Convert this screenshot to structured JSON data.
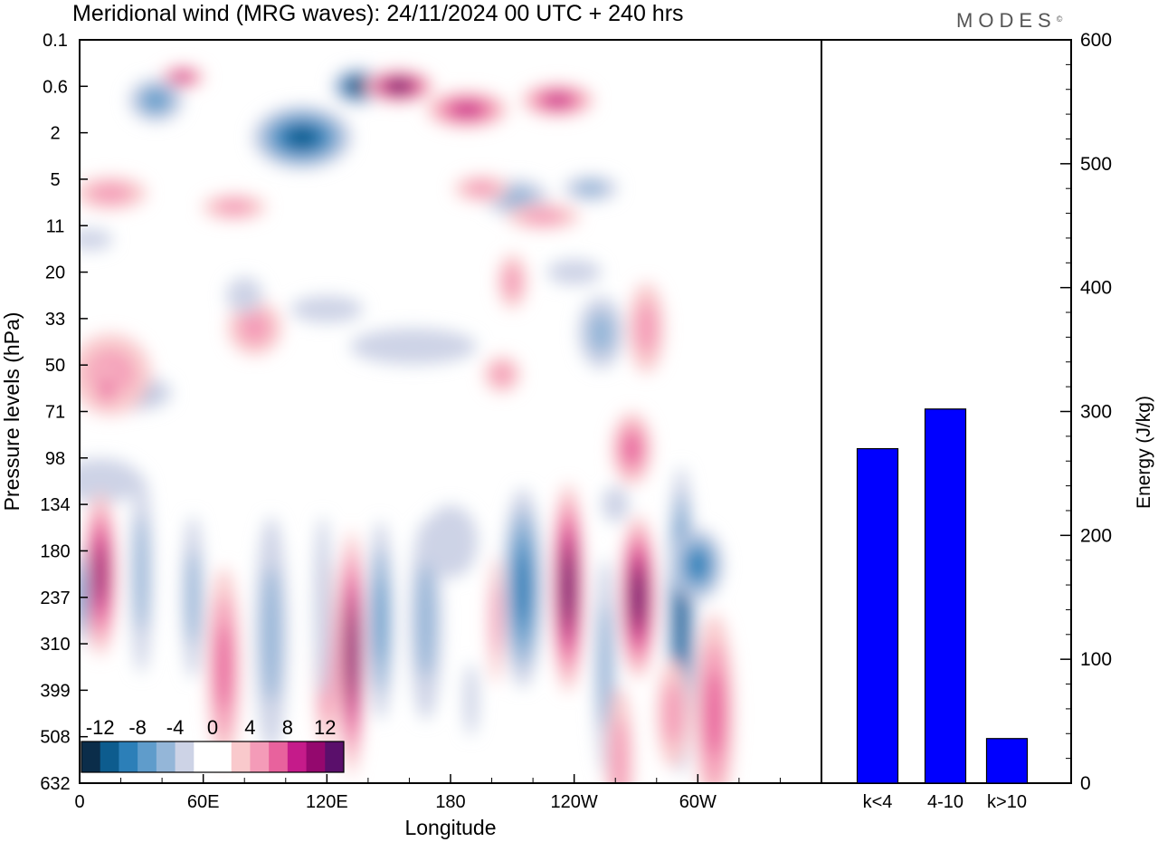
{
  "header": {
    "title": "Meridional wind (MRG waves):  24/11/2024  00 UTC  + 240 hrs",
    "logo_text": "MODES",
    "logo_mark": "©"
  },
  "chart_data": [
    {
      "type": "heatmap",
      "title": "Meridional wind (MRG waves)",
      "xlabel": "Longitude",
      "ylabel": "Pressure levels (hPa)",
      "x_ticks": [
        "0",
        "60E",
        "120E",
        "180",
        "120W",
        "60W"
      ],
      "y_ticks": [
        "0.1",
        "0.6",
        "2",
        "5",
        "11",
        "20",
        "33",
        "50",
        "71",
        "98",
        "134",
        "180",
        "237",
        "310",
        "399",
        "508",
        "632"
      ],
      "colorbar": {
        "labels": [
          "-12",
          "-8",
          "-4",
          "0",
          "4",
          "8",
          "12"
        ],
        "colors": [
          "#0b2d4a",
          "#0d5c8e",
          "#2c7fb8",
          "#5f9ccb",
          "#94b6d8",
          "#cdd3e6",
          "#ffffff",
          "#ffffff",
          "#f9c9cc",
          "#f49bb8",
          "#e8629d",
          "#c51b8a",
          "#94086e",
          "#5a0f6b"
        ]
      },
      "features": [
        {
          "lon": 135,
          "level": 1,
          "value": -14,
          "rx": 28,
          "ry": 20
        },
        {
          "lon": 155,
          "level": 1,
          "value": 14,
          "rx": 38,
          "ry": 18
        },
        {
          "lon": 50,
          "level": 0.8,
          "value": 9,
          "rx": 24,
          "ry": 12
        },
        {
          "lon": 108,
          "level": 2.1,
          "value": -10,
          "rx": 55,
          "ry": 35
        },
        {
          "lon": 188,
          "level": 1.5,
          "value": 9,
          "rx": 45,
          "ry": 20
        },
        {
          "lon": 232,
          "level": 1.3,
          "value": 8,
          "rx": 40,
          "ry": 18
        },
        {
          "lon": 37,
          "level": 1.3,
          "value": -7,
          "rx": 30,
          "ry": 24
        },
        {
          "lon": 15,
          "level": 3.3,
          "value": 5,
          "rx": 40,
          "ry": 18
        },
        {
          "lon": 75,
          "level": 3.6,
          "value": 5,
          "rx": 35,
          "ry": 14
        },
        {
          "lon": 212,
          "level": 3.4,
          "value": -4,
          "rx": 35,
          "ry": 20
        },
        {
          "lon": 248,
          "level": 3.2,
          "value": -4,
          "rx": 30,
          "ry": 14
        },
        {
          "lon": 195,
          "level": 3.2,
          "value": 4,
          "rx": 30,
          "ry": 14
        },
        {
          "lon": 5,
          "level": 4.3,
          "value": -3,
          "rx": 25,
          "ry": 12
        },
        {
          "lon": 225,
          "level": 3.8,
          "value": 4,
          "rx": 40,
          "ry": 14
        },
        {
          "lon": 120,
          "level": 5.8,
          "value": -3,
          "rx": 40,
          "ry": 15
        },
        {
          "lon": 210,
          "level": 5.2,
          "value": 4,
          "rx": 16,
          "ry": 30
        },
        {
          "lon": 240,
          "level": 5,
          "value": -3,
          "rx": 30,
          "ry": 14
        },
        {
          "lon": 85,
          "level": 6.2,
          "value": 4,
          "rx": 30,
          "ry": 30
        },
        {
          "lon": 80,
          "level": 5.5,
          "value": -3,
          "rx": 20,
          "ry": 20
        },
        {
          "lon": 162,
          "level": 6.6,
          "value": -3,
          "rx": 70,
          "ry": 20
        },
        {
          "lon": 253,
          "level": 6.3,
          "value": -4,
          "rx": 25,
          "ry": 40
        },
        {
          "lon": 275,
          "level": 6.2,
          "value": 4,
          "rx": 20,
          "ry": 50
        },
        {
          "lon": 25,
          "level": 7.6,
          "value": -4,
          "rx": 45,
          "ry": 20
        },
        {
          "lon": 15,
          "level": 7.2,
          "value": 5,
          "rx": 45,
          "ry": 45
        },
        {
          "lon": 13,
          "level": 7.5,
          "value": 6,
          "rx": 14,
          "ry": 25
        },
        {
          "lon": 205,
          "level": 7.2,
          "value": 4,
          "rx": 20,
          "ry": 20
        },
        {
          "lon": 10,
          "level": 9.5,
          "value": -3,
          "rx": 45,
          "ry": 25
        },
        {
          "lon": 268,
          "level": 8.8,
          "value": 7,
          "rx": 22,
          "ry": 40
        },
        {
          "lon": 10,
          "level": 11.5,
          "value": 10,
          "rx": 18,
          "ry": 90
        },
        {
          "lon": 30,
          "level": 11.5,
          "value": -5,
          "rx": 12,
          "ry": 110
        },
        {
          "lon": 0,
          "level": 12,
          "value": -7,
          "rx": 10,
          "ry": 55
        },
        {
          "lon": 55,
          "level": 12,
          "value": -4,
          "rx": 12,
          "ry": 90
        },
        {
          "lon": 70,
          "level": 13.5,
          "value": 6,
          "rx": 18,
          "ry": 110
        },
        {
          "lon": 93,
          "level": 12.8,
          "value": -4,
          "rx": 18,
          "ry": 130
        },
        {
          "lon": 120,
          "level": 13.2,
          "value": 6,
          "rx": 14,
          "ry": 110
        },
        {
          "lon": 118,
          "level": 12.2,
          "value": -3,
          "rx": 10,
          "ry": 100
        },
        {
          "lon": 132,
          "level": 13.2,
          "value": 12,
          "rx": 14,
          "ry": 135
        },
        {
          "lon": 146,
          "level": 12.5,
          "value": -7,
          "rx": 14,
          "ry": 110
        },
        {
          "lon": 168,
          "level": 12.5,
          "value": -4,
          "rx": 18,
          "ry": 110
        },
        {
          "lon": 180,
          "level": 10.8,
          "value": -3,
          "rx": 30,
          "ry": 40
        },
        {
          "lon": 190,
          "level": 14.2,
          "value": -3,
          "rx": 8,
          "ry": 40
        },
        {
          "lon": 202,
          "level": 12.5,
          "value": 4,
          "rx": 8,
          "ry": 70
        },
        {
          "lon": 215,
          "level": 11.8,
          "value": -9,
          "rx": 22,
          "ry": 110
        },
        {
          "lon": 237,
          "level": 11.8,
          "value": 12,
          "rx": 18,
          "ry": 115
        },
        {
          "lon": 255,
          "level": 13.5,
          "value": -4,
          "rx": 12,
          "ry": 120
        },
        {
          "lon": 262,
          "level": 15.5,
          "value": 4,
          "rx": 15,
          "ry": 80
        },
        {
          "lon": 271,
          "level": 12,
          "value": 13,
          "rx": 20,
          "ry": 90
        },
        {
          "lon": 292,
          "level": 12.5,
          "value": -10,
          "rx": 16,
          "ry": 170
        },
        {
          "lon": 300,
          "level": 11.3,
          "value": -8,
          "rx": 28,
          "ry": 40
        },
        {
          "lon": 288,
          "level": 14.5,
          "value": 4,
          "rx": 18,
          "ry": 60
        },
        {
          "lon": 308,
          "level": 14.5,
          "value": 6,
          "rx": 22,
          "ry": 110
        },
        {
          "lon": 260,
          "level": 10,
          "value": -3,
          "rx": 15,
          "ry": 20
        }
      ]
    },
    {
      "type": "bar",
      "categories": [
        "k<4",
        "4-10",
        "k>10"
      ],
      "values": [
        270,
        302,
        36
      ],
      "ylabel": "Energy (J/kg)",
      "ylim": [
        0,
        600
      ],
      "y_ticks": [
        "0",
        "100",
        "200",
        "300",
        "400",
        "500",
        "600"
      ],
      "bar_color": "#0000ff"
    }
  ]
}
